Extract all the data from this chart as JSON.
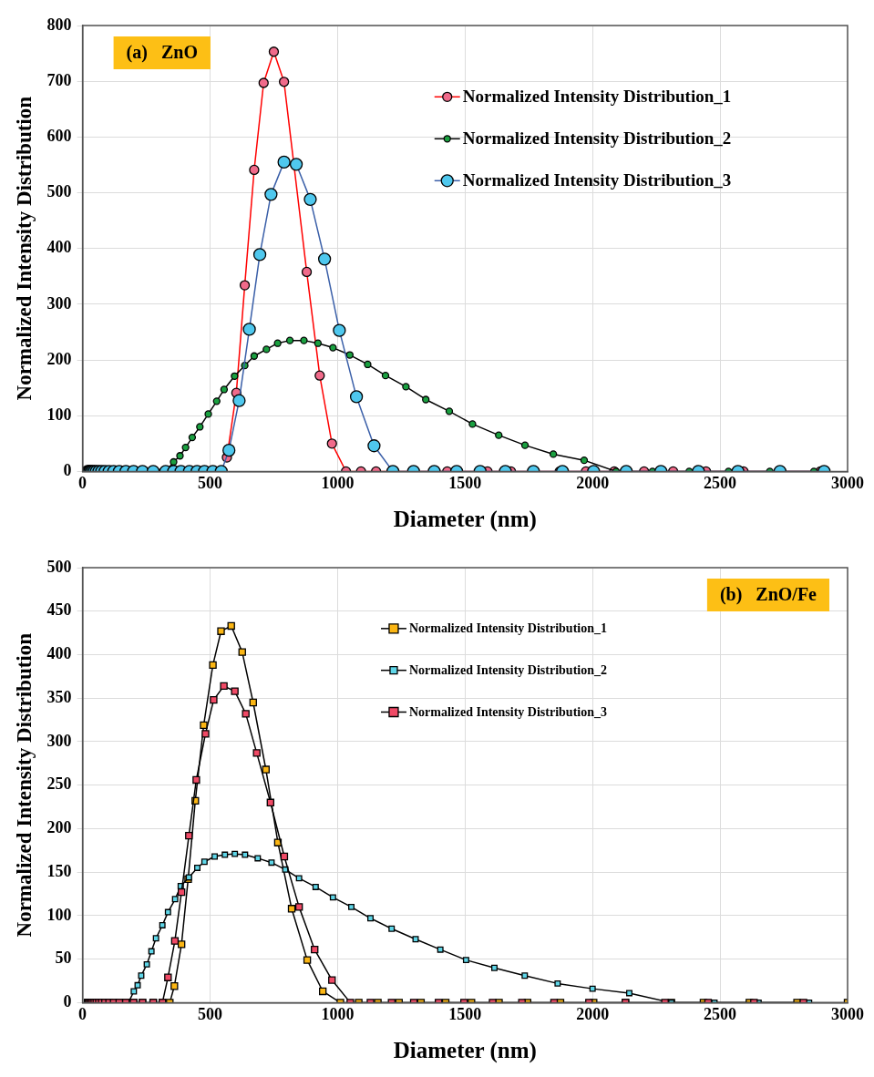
{
  "chart_data": [
    {
      "type": "line",
      "marker": "circle",
      "annotations": [
        "(a)   ZnO"
      ],
      "xlabel": "Diameter (nm)",
      "ylabel": "Normalized Intensity Distribution",
      "xlim": [
        0,
        3000
      ],
      "xticks": [
        0,
        500,
        1000,
        1500,
        2000,
        2500,
        3000
      ],
      "ylim": [
        0,
        800
      ],
      "yticks": [
        0,
        100,
        200,
        300,
        400,
        500,
        600,
        700,
        800
      ],
      "grid": true,
      "legend": "top right",
      "series": [
        {
          "name": "Normalized Intensity Distribution_1",
          "color": "#f06a8a",
          "x": [
            566,
            603,
            636,
            673,
            710,
            750,
            790,
            879,
            930,
            978,
            1033,
            1092,
            1151,
            1430,
            1588,
            1680,
            1871,
            1974,
            2085,
            2202,
            2316,
            2445,
            2592,
            2893
          ],
          "values": [
            25,
            141,
            334,
            541,
            697,
            753,
            699,
            358,
            172,
            50,
            0,
            0,
            0,
            0,
            0,
            0,
            0,
            0,
            0,
            0,
            0,
            0,
            0,
            0
          ]
        },
        {
          "name": "Normalized Intensity Distribution_2",
          "color": "#1aa040",
          "x": [
            20,
            24,
            28,
            33,
            39,
            46,
            54,
            64,
            75,
            88,
            104,
            122,
            144,
            170,
            200,
            235,
            277,
            326,
            357,
            382,
            404,
            430,
            460,
            493,
            526,
            555,
            596,
            636,
            673,
            721,
            765,
            813,
            868,
            923,
            982,
            1048,
            1118,
            1188,
            1268,
            1346,
            1438,
            1529,
            1632,
            1735,
            1846,
            1967,
            2092,
            2235,
            2379,
            2533,
            2695,
            2868
          ],
          "values": [
            0,
            0,
            0,
            0,
            0,
            0,
            0,
            0,
            0,
            0,
            0,
            0,
            0,
            0,
            0,
            0,
            0,
            0,
            17,
            28,
            43,
            61,
            80,
            103,
            126,
            147,
            171,
            190,
            207,
            219,
            230,
            235,
            235,
            230,
            222,
            209,
            192,
            172,
            152,
            129,
            108,
            85,
            65,
            47,
            31,
            20,
            0,
            0,
            0,
            0,
            0,
            0
          ]
        },
        {
          "name": "Normalized Intensity Distribution_3",
          "color": "#4fc8ee",
          "x": [
            20,
            24,
            28,
            33,
            39,
            46,
            54,
            64,
            75,
            88,
            104,
            122,
            144,
            170,
            200,
            235,
            277,
            326,
            357,
            386,
            419,
            449,
            478,
            511,
            544,
            574,
            614,
            654,
            695,
            739,
            790,
            838,
            893,
            949,
            1007,
            1074,
            1143,
            1217,
            1298,
            1379,
            1467,
            1559,
            1658,
            1768,
            1882,
            2004,
            2132,
            2268,
            2415,
            2570,
            2735,
            2908
          ],
          "values": [
            0,
            0,
            0,
            0,
            0,
            0,
            0,
            0,
            0,
            0,
            0,
            0,
            0,
            0,
            0,
            0,
            0,
            0,
            0,
            0,
            0,
            0,
            0,
            0,
            0,
            38,
            127,
            255,
            389,
            497,
            555,
            551,
            488,
            381,
            253,
            134,
            46,
            0,
            0,
            0,
            0,
            0,
            0,
            0,
            0,
            0,
            0,
            0,
            0,
            0,
            0,
            0
          ]
        }
      ]
    },
    {
      "type": "line",
      "marker": "square",
      "annotations": [
        "(b)   ZnO/Fe"
      ],
      "xlabel": "Diameter (nm)",
      "ylabel": "Normalized Intensity Distribution",
      "xlim": [
        0,
        3000
      ],
      "xticks": [
        0,
        500,
        1000,
        1500,
        2000,
        2500,
        3000
      ],
      "ylim": [
        0,
        500
      ],
      "yticks": [
        0,
        50,
        100,
        150,
        200,
        250,
        300,
        350,
        400,
        450,
        500
      ],
      "grid": true,
      "legend": "top right",
      "series": [
        {
          "name": "Normalized Intensity Distribution_1",
          "color": "#fbb614",
          "x": [
            20,
            24,
            28,
            33,
            39,
            46,
            54,
            64,
            75,
            88,
            104,
            122,
            144,
            170,
            200,
            235,
            277,
            313,
            342,
            360,
            388,
            414,
            442,
            475,
            511,
            543,
            583,
            626,
            669,
            719,
            766,
            820,
            881,
            942,
            1011,
            1083,
            1158,
            1241,
            1327,
            1424,
            1525,
            1633,
            1745,
            1874,
            2004,
            2129,
            2309,
            2435,
            2615,
            2802,
            3000
          ],
          "values": [
            0,
            0,
            0,
            0,
            0,
            0,
            0,
            0,
            0,
            0,
            0,
            0,
            0,
            0,
            0,
            0,
            0,
            0,
            0,
            19,
            67,
            142,
            232,
            319,
            388,
            427,
            433,
            403,
            345,
            268,
            184,
            108,
            49,
            13,
            0,
            0,
            0,
            0,
            0,
            0,
            0,
            0,
            0,
            0,
            0,
            0,
            0,
            0,
            0,
            0,
            0
          ]
        },
        {
          "name": "Normalized Intensity Distribution_2",
          "color": "#5fd6e8",
          "x": [
            20,
            24,
            28,
            33,
            39,
            46,
            54,
            64,
            75,
            88,
            104,
            122,
            144,
            170,
            180,
            201,
            216,
            230,
            252,
            270,
            288,
            313,
            335,
            363,
            385,
            417,
            450,
            478,
            518,
            558,
            597,
            637,
            687,
            741,
            795,
            849,
            914,
            982,
            1054,
            1129,
            1212,
            1306,
            1403,
            1504,
            1615,
            1734,
            1863,
            2000,
            2144,
            2309,
            2478,
            2651,
            2849
          ],
          "values": [
            0,
            0,
            0,
            0,
            0,
            0,
            0,
            0,
            0,
            0,
            0,
            0,
            0,
            0,
            0,
            13,
            20,
            31,
            44,
            59,
            74,
            89,
            104,
            119,
            134,
            144,
            155,
            162,
            168,
            170,
            171,
            170,
            166,
            161,
            153,
            143,
            133,
            121,
            110,
            97,
            85,
            73,
            61,
            49,
            40,
            31,
            22,
            16,
            11,
            0,
            0,
            0,
            0
          ]
        },
        {
          "name": "Normalized Intensity Distribution_3",
          "color": "#f04a66",
          "x": [
            20,
            24,
            28,
            33,
            39,
            46,
            54,
            64,
            75,
            88,
            104,
            122,
            144,
            170,
            200,
            235,
            277,
            313,
            335,
            362,
            388,
            417,
            446,
            482,
            514,
            554,
            597,
            640,
            683,
            737,
            791,
            849,
            910,
            978,
            1050,
            1129,
            1212,
            1299,
            1396,
            1496,
            1608,
            1723,
            1849,
            1986,
            2129,
            2284,
            2453,
            2633,
            2827
          ],
          "values": [
            0,
            0,
            0,
            0,
            0,
            0,
            0,
            0,
            0,
            0,
            0,
            0,
            0,
            0,
            0,
            0,
            0,
            0,
            29,
            71,
            127,
            192,
            256,
            309,
            348,
            364,
            358,
            332,
            287,
            230,
            168,
            110,
            61,
            26,
            0,
            0,
            0,
            0,
            0,
            0,
            0,
            0,
            0,
            0,
            0,
            0,
            0,
            0,
            0
          ]
        }
      ]
    }
  ]
}
